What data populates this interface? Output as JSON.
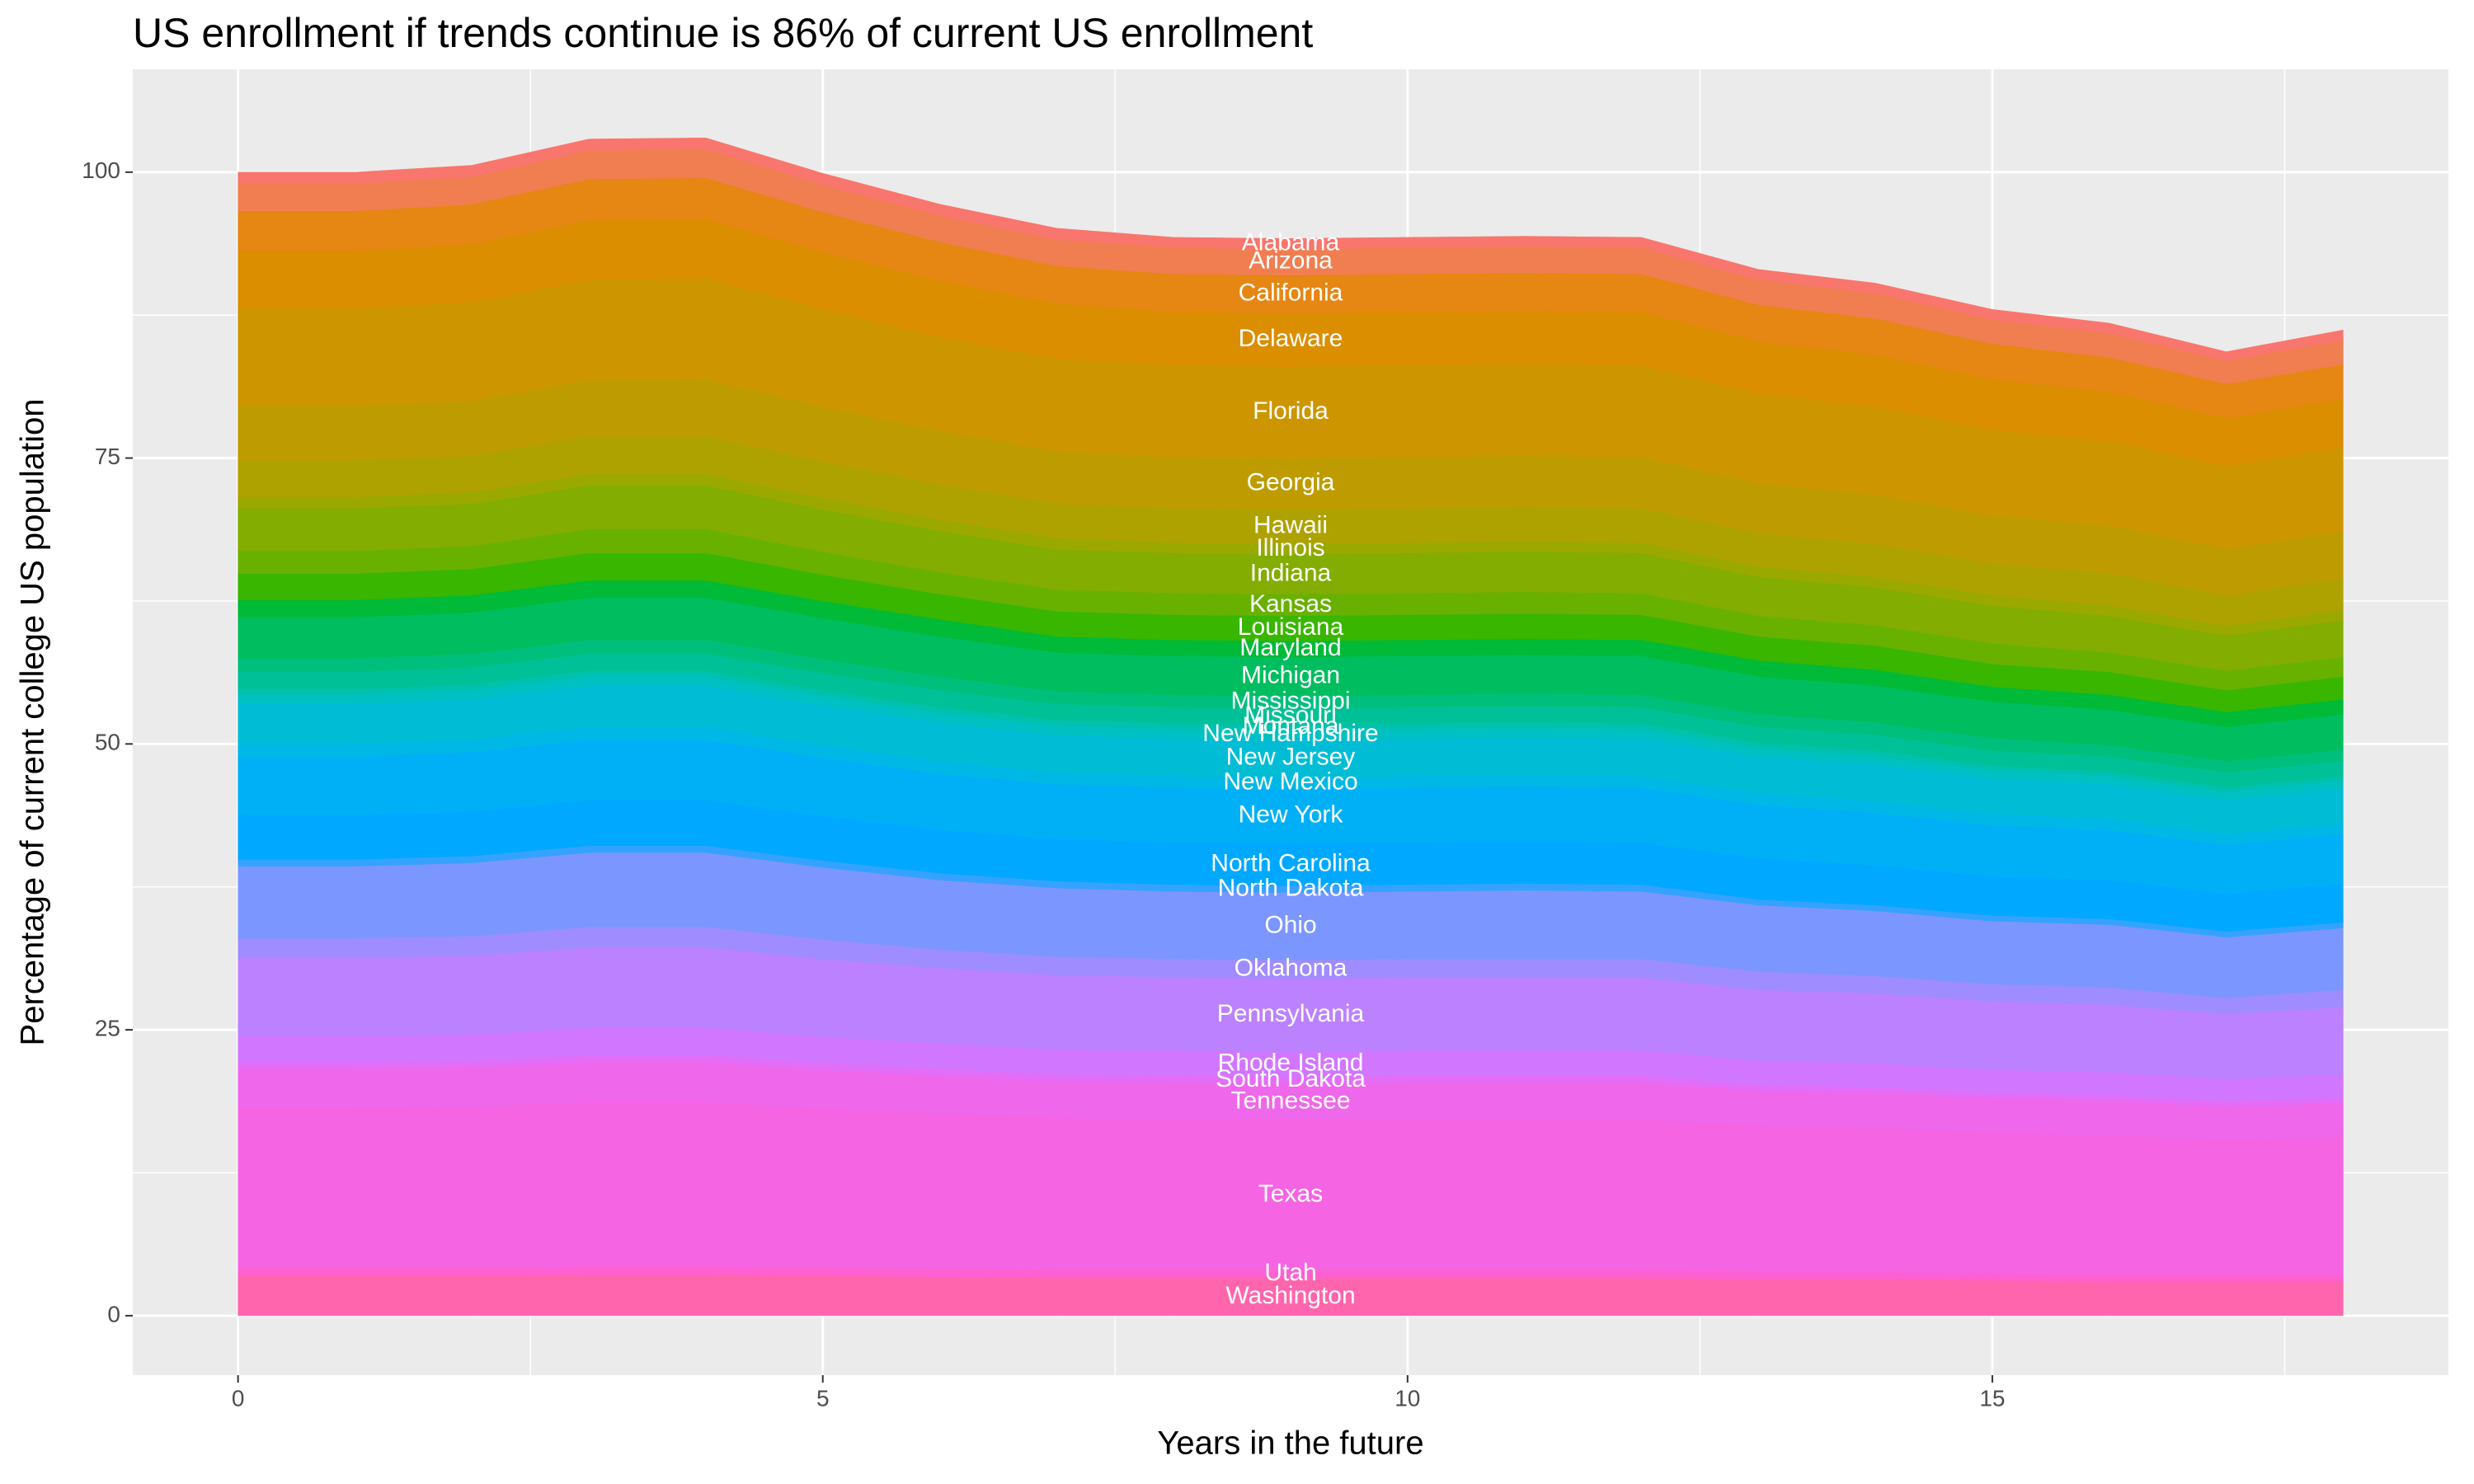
{
  "chart_data": {
    "type": "stacked-area",
    "title": "US enrollment if trends continue is 86% of current US enrollment",
    "x_label": "Years in the future",
    "y_label": "Percentage of current college US population",
    "x": [
      0,
      1,
      2,
      3,
      4,
      5,
      6,
      7,
      8,
      9,
      10,
      11,
      12,
      13,
      14,
      15,
      16,
      17,
      18
    ],
    "xlim": [
      -0.9,
      18.9
    ],
    "xticks": [
      0,
      5,
      10,
      15
    ],
    "ylim": [
      -5.2,
      109
    ],
    "yticks": [
      0,
      25,
      50,
      75,
      100
    ],
    "grid": true,
    "label_at": 9,
    "series": [
      {
        "name": "Washington",
        "color": "#FF65AC",
        "values": [
          3.5,
          3.5,
          3.5,
          3.6,
          3.6,
          3.5,
          3.4,
          3.3,
          3.3,
          3.3,
          3.3,
          3.3,
          3.3,
          3.2,
          3.2,
          3.1,
          3.0,
          3.0,
          3.0
        ]
      },
      {
        "name": "Utah",
        "color": "#FD61D1",
        "values": [
          0.7,
          0.7,
          0.7,
          0.7,
          0.7,
          0.7,
          0.7,
          0.7,
          0.7,
          0.7,
          0.7,
          0.7,
          0.7,
          0.6,
          0.6,
          0.6,
          0.6,
          0.6,
          0.6
        ]
      },
      {
        "name": "Texas",
        "color": "#F564E3",
        "values": [
          14,
          14.0,
          14.1,
          14.4,
          14.4,
          13.9,
          13.6,
          13.3,
          13.2,
          13.1,
          13.2,
          13.2,
          13.2,
          12.8,
          12.6,
          12.3,
          12.2,
          11.8,
          12.1
        ]
      },
      {
        "name": "Tennessee",
        "color": "#EF67EB",
        "values": [
          3.4,
          3.4,
          3.4,
          3.5,
          3.5,
          3.4,
          3.3,
          3.2,
          3.2,
          3.2,
          3.2,
          3.2,
          3.2,
          3.1,
          3.1,
          3.0,
          3.0,
          2.9,
          2.9
        ]
      },
      {
        "name": "South Dakota",
        "color": "#E26EF7",
        "values": [
          0.6,
          0.6,
          0.6,
          0.6,
          0.6,
          0.6,
          0.6,
          0.6,
          0.6,
          0.6,
          0.6,
          0.6,
          0.6,
          0.5,
          0.5,
          0.5,
          0.5,
          0.5,
          0.5
        ]
      },
      {
        "name": "Rhode Island",
        "color": "#D177FF",
        "values": [
          2.3,
          2.3,
          2.3,
          2.4,
          2.4,
          2.3,
          2.2,
          2.2,
          2.2,
          2.2,
          2.2,
          2.2,
          2.2,
          2.1,
          2.1,
          2.0,
          2.0,
          1.9,
          2.0
        ]
      },
      {
        "name": "Pennsylvania",
        "color": "#BC81FF",
        "values": [
          6.8,
          6.8,
          6.9,
          7.0,
          7.0,
          6.8,
          6.6,
          6.5,
          6.4,
          6.4,
          6.4,
          6.4,
          6.4,
          6.2,
          6.1,
          6.0,
          5.9,
          5.7,
          5.9
        ]
      },
      {
        "name": "Oklahoma",
        "color": "#9F8CFF",
        "values": [
          1.7,
          1.7,
          1.7,
          1.8,
          1.8,
          1.7,
          1.6,
          1.6,
          1.6,
          1.6,
          1.6,
          1.6,
          1.6,
          1.6,
          1.5,
          1.5,
          1.5,
          1.4,
          1.5
        ]
      },
      {
        "name": "Ohio",
        "color": "#7C96FF",
        "values": [
          6.3,
          6.3,
          6.4,
          6.5,
          6.5,
          6.3,
          6.1,
          6.0,
          5.9,
          5.9,
          5.9,
          6.0,
          5.9,
          5.8,
          5.7,
          5.5,
          5.5,
          5.3,
          5.4
        ]
      },
      {
        "name": "North Dakota",
        "color": "#35A2FF",
        "values": [
          0.6,
          0.6,
          0.6,
          0.6,
          0.6,
          0.6,
          0.6,
          0.6,
          0.6,
          0.6,
          0.6,
          0.6,
          0.6,
          0.5,
          0.5,
          0.5,
          0.5,
          0.5,
          0.5
        ]
      },
      {
        "name": "North Carolina",
        "color": "#00A8FF",
        "values": [
          3.9,
          3.9,
          3.9,
          4.0,
          4.0,
          3.9,
          3.8,
          3.7,
          3.7,
          3.7,
          3.7,
          3.7,
          3.7,
          3.6,
          3.5,
          3.4,
          3.4,
          3.3,
          3.4
        ]
      },
      {
        "name": "New York",
        "color": "#00B0F6",
        "values": [
          5.1,
          5.1,
          5.2,
          5.3,
          5.3,
          5.1,
          4.9,
          4.8,
          4.8,
          4.8,
          4.8,
          4.8,
          4.8,
          4.7,
          4.6,
          4.5,
          4.4,
          4.3,
          4.4
        ]
      },
      {
        "name": "New Mexico",
        "color": "#00B8E5",
        "values": [
          1.1,
          1.1,
          1.1,
          1.1,
          1.1,
          1.1,
          1.1,
          1.0,
          1.0,
          1.0,
          1.0,
          1.0,
          1.0,
          1.0,
          1.0,
          1.0,
          1.0,
          0.9,
          0.9
        ]
      },
      {
        "name": "New Jersey",
        "color": "#00BDD5",
        "values": [
          3.5,
          3.5,
          3.5,
          3.6,
          3.6,
          3.5,
          3.4,
          3.3,
          3.3,
          3.3,
          3.3,
          3.3,
          3.3,
          3.2,
          3.2,
          3.1,
          3.0,
          3.0,
          3.0
        ]
      },
      {
        "name": "New Hampshire",
        "color": "#00C0C3",
        "values": [
          0.8,
          0.8,
          0.8,
          0.8,
          0.8,
          0.8,
          0.8,
          0.8,
          0.8,
          0.8,
          0.8,
          0.8,
          0.8,
          0.7,
          0.7,
          0.7,
          0.7,
          0.7,
          0.7
        ]
      },
      {
        "name": "Montana",
        "color": "#00C1AE",
        "values": [
          0.5,
          0.5,
          0.5,
          0.5,
          0.5,
          0.5,
          0.5,
          0.5,
          0.5,
          0.5,
          0.5,
          0.5,
          0.5,
          0.5,
          0.5,
          0.4,
          0.4,
          0.4,
          0.4
        ]
      },
      {
        "name": "Missouri",
        "color": "#00C097",
        "values": [
          1.5,
          1.5,
          1.5,
          1.5,
          1.5,
          1.5,
          1.5,
          1.4,
          1.4,
          1.4,
          1.4,
          1.4,
          1.4,
          1.4,
          1.4,
          1.3,
          1.3,
          1.3,
          1.3
        ]
      },
      {
        "name": "Mississippi",
        "color": "#00BF7D",
        "values": [
          1.2,
          1.2,
          1.2,
          1.2,
          1.2,
          1.2,
          1.2,
          1.1,
          1.1,
          1.1,
          1.1,
          1.1,
          1.1,
          1.1,
          1.1,
          1.1,
          1.0,
          1.0,
          1.0
        ]
      },
      {
        "name": "Michigan",
        "color": "#00BD5F",
        "values": [
          3.6,
          3.6,
          3.6,
          3.7,
          3.7,
          3.6,
          3.5,
          3.4,
          3.4,
          3.4,
          3.4,
          3.4,
          3.4,
          3.3,
          3.2,
          3.2,
          3.1,
          3.0,
          3.1
        ]
      },
      {
        "name": "Maryland",
        "color": "#00BA38",
        "values": [
          1.5,
          1.5,
          1.5,
          1.5,
          1.5,
          1.5,
          1.5,
          1.4,
          1.4,
          1.4,
          1.4,
          1.4,
          1.4,
          1.4,
          1.4,
          1.3,
          1.3,
          1.3,
          1.3
        ]
      },
      {
        "name": "Louisiana",
        "color": "#39B600",
        "values": [
          2.3,
          2.3,
          2.3,
          2.4,
          2.4,
          2.3,
          2.2,
          2.2,
          2.2,
          2.2,
          2.2,
          2.2,
          2.2,
          2.1,
          2.1,
          2.0,
          2.0,
          1.9,
          2.0
        ]
      },
      {
        "name": "Kansas",
        "color": "#68B100",
        "values": [
          2.0,
          2.0,
          2.0,
          2.1,
          2.1,
          2.0,
          1.9,
          1.9,
          1.9,
          1.9,
          1.9,
          1.9,
          1.9,
          1.8,
          1.8,
          1.8,
          1.7,
          1.7,
          1.7
        ]
      },
      {
        "name": "Indiana",
        "color": "#83AD00",
        "values": [
          3.7,
          3.7,
          3.7,
          3.8,
          3.8,
          3.7,
          3.6,
          3.5,
          3.5,
          3.5,
          3.5,
          3.5,
          3.5,
          3.4,
          3.3,
          3.3,
          3.2,
          3.1,
          3.2
        ]
      },
      {
        "name": "Illinois",
        "color": "#9AA800",
        "values": [
          1.0,
          1.0,
          1.0,
          1.0,
          1.0,
          1.0,
          1.0,
          1.0,
          0.9,
          0.9,
          0.9,
          0.9,
          0.9,
          0.9,
          0.9,
          0.9,
          0.9,
          0.8,
          0.9
        ]
      },
      {
        "name": "Hawaii",
        "color": "#AEA200",
        "values": [
          3.2,
          3.2,
          3.2,
          3.3,
          3.3,
          3.2,
          3.1,
          3.0,
          3.0,
          3.0,
          3.0,
          3.0,
          3.0,
          2.9,
          2.9,
          2.8,
          2.8,
          2.7,
          2.8
        ]
      },
      {
        "name": "Georgia",
        "color": "#BE9C00",
        "values": [
          4.8,
          4.8,
          4.8,
          4.9,
          5.0,
          4.8,
          4.7,
          4.6,
          4.5,
          4.5,
          4.5,
          4.5,
          4.5,
          4.4,
          4.3,
          4.2,
          4.2,
          4.1,
          4.1
        ]
      },
      {
        "name": "Florida",
        "color": "#CD9600",
        "values": [
          8.5,
          8.5,
          8.6,
          8.8,
          8.8,
          8.5,
          8.2,
          8.1,
          8.0,
          8.0,
          8.0,
          8.0,
          8.0,
          7.8,
          7.7,
          7.5,
          7.4,
          7.2,
          7.3
        ]
      },
      {
        "name": "Delaware",
        "color": "#DA8E00",
        "values": [
          5.0,
          5.0,
          5.1,
          5.2,
          5.2,
          5.0,
          4.9,
          4.8,
          4.7,
          4.7,
          4.7,
          4.7,
          4.7,
          4.6,
          4.5,
          4.4,
          4.3,
          4.2,
          4.3
        ]
      },
      {
        "name": "California",
        "color": "#E68613",
        "values": [
          3.5,
          3.5,
          3.5,
          3.6,
          3.6,
          3.5,
          3.4,
          3.3,
          3.3,
          3.3,
          3.3,
          3.3,
          3.3,
          3.2,
          3.2,
          3.1,
          3.0,
          3.0,
          3.0
        ]
      },
      {
        "name": "Arizona",
        "color": "#F07E50",
        "values": [
          2.4,
          2.4,
          2.4,
          2.5,
          2.5,
          2.4,
          2.3,
          2.3,
          2.3,
          2.3,
          2.3,
          2.3,
          2.3,
          2.2,
          2.2,
          2.1,
          2.1,
          2.0,
          2.1
        ]
      },
      {
        "name": "Alabama",
        "color": "#F8766D",
        "values": [
          1.0,
          1.0,
          1.0,
          1.0,
          1.0,
          1.0,
          1.0,
          1.0,
          0.9,
          0.9,
          0.9,
          0.9,
          0.9,
          0.9,
          0.9,
          0.9,
          0.9,
          0.8,
          0.9
        ]
      }
    ]
  }
}
